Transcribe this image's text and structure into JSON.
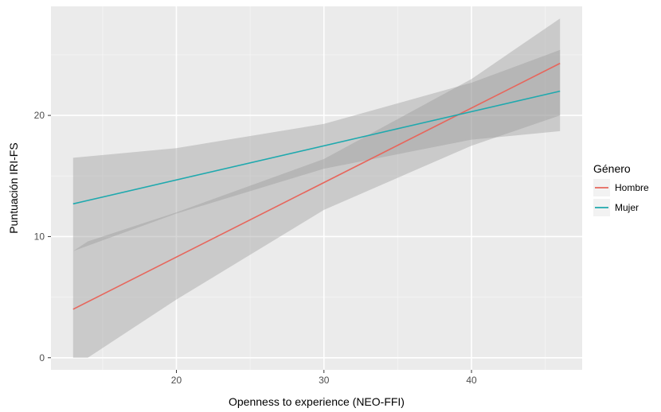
{
  "chart_data": {
    "type": "line",
    "xlabel": "Openness to experience (NEO-FFI)",
    "ylabel": "Puntuación IRI-FS",
    "xlim": [
      11.5,
      47.5
    ],
    "ylim": [
      -1,
      29
    ],
    "x_ticks": [
      20,
      30,
      40
    ],
    "y_ticks": [
      0,
      10,
      20
    ],
    "x_tick_labels": [
      "20",
      "30",
      "40"
    ],
    "y_tick_labels": [
      "0",
      "10",
      "20"
    ],
    "grid": true,
    "background": "#ebebeb",
    "legend": {
      "title": "Género",
      "position": "right"
    },
    "series": [
      {
        "name": "Hombre",
        "color": "#e7665c",
        "x": [
          13,
          46
        ],
        "y": [
          4.0,
          24.3
        ],
        "ci_x": [
          13,
          14,
          20,
          30,
          40,
          46
        ],
        "ci_upper": [
          8.8,
          9.6,
          12.0,
          16.4,
          23.0,
          28.0
        ],
        "ci_lower": [
          0,
          0,
          4.8,
          12.2,
          17.5,
          20.0
        ]
      },
      {
        "name": "Mujer",
        "color": "#1fa9ae",
        "x": [
          13,
          46
        ],
        "y": [
          12.7,
          22.0
        ],
        "ci_x": [
          13,
          20,
          30,
          40,
          46
        ],
        "ci_upper": [
          16.5,
          17.3,
          19.3,
          22.7,
          25.4
        ],
        "ci_lower": [
          8.8,
          11.9,
          15.6,
          18.0,
          18.7
        ]
      }
    ]
  }
}
